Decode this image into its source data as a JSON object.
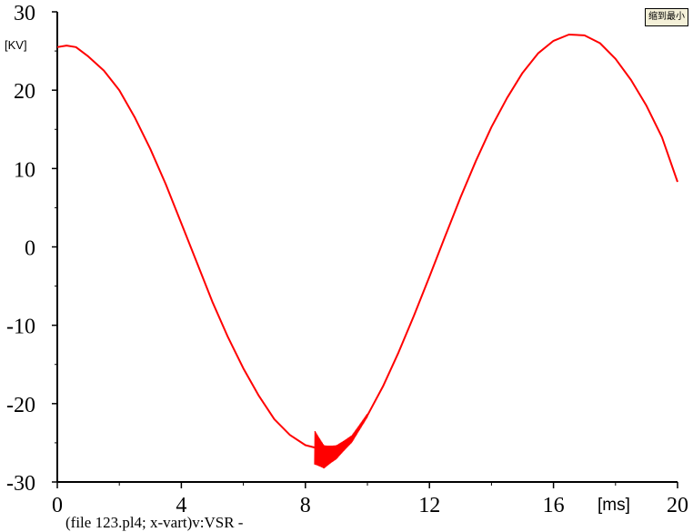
{
  "chart_data": {
    "type": "line",
    "title": "",
    "xlabel": "[ms]",
    "ylabel": "[KV]",
    "caption": "(file 123.pl4; x-vart)v:VSR -",
    "xlim": [
      0,
      20
    ],
    "ylim": [
      -30,
      30
    ],
    "x_ticks": [
      0,
      4,
      8,
      12,
      16,
      20
    ],
    "y_ticks": [
      30,
      20,
      10,
      0,
      -10,
      -20,
      -30
    ],
    "grid": false,
    "series": [
      {
        "color": "#ff0000",
        "points": [
          [
            0,
            25.5
          ],
          [
            0.3,
            25.7
          ],
          [
            0.6,
            25.5
          ],
          [
            1.0,
            24.3
          ],
          [
            1.5,
            22.5
          ],
          [
            2.0,
            20.0
          ],
          [
            2.5,
            16.5
          ],
          [
            3.0,
            12.5
          ],
          [
            3.5,
            8.0
          ],
          [
            4.0,
            3.0
          ],
          [
            4.5,
            -2.0
          ],
          [
            5.0,
            -7.0
          ],
          [
            5.5,
            -11.5
          ],
          [
            6.0,
            -15.5
          ],
          [
            6.5,
            -19.0
          ],
          [
            7.0,
            -22.0
          ],
          [
            7.5,
            -24.0
          ],
          [
            8.0,
            -25.3
          ],
          [
            8.3,
            -25.6
          ],
          [
            8.6,
            -26.8
          ],
          [
            9.0,
            -26.2
          ],
          [
            9.5,
            -24.5
          ],
          [
            10.0,
            -21.5
          ],
          [
            10.5,
            -17.8
          ],
          [
            11.0,
            -13.5
          ],
          [
            11.5,
            -8.8
          ],
          [
            12.0,
            -3.8
          ],
          [
            12.5,
            1.3
          ],
          [
            13.0,
            6.3
          ],
          [
            13.5,
            11.0
          ],
          [
            14.0,
            15.3
          ],
          [
            14.5,
            19.0
          ],
          [
            15.0,
            22.2
          ],
          [
            15.5,
            24.7
          ],
          [
            16.0,
            26.3
          ],
          [
            16.5,
            27.1
          ],
          [
            17.0,
            27.0
          ],
          [
            17.5,
            26.0
          ],
          [
            18.0,
            24.0
          ],
          [
            18.5,
            21.3
          ],
          [
            19.0,
            18.0
          ],
          [
            19.5,
            14.0
          ],
          [
            20.0,
            8.3
          ]
        ],
        "oscillation": {
          "x_start": 8.3,
          "x_end": 10.0,
          "y_low": -28.5
        }
      }
    ]
  },
  "controls": {
    "shrink_button_label": "缩到最小"
  }
}
